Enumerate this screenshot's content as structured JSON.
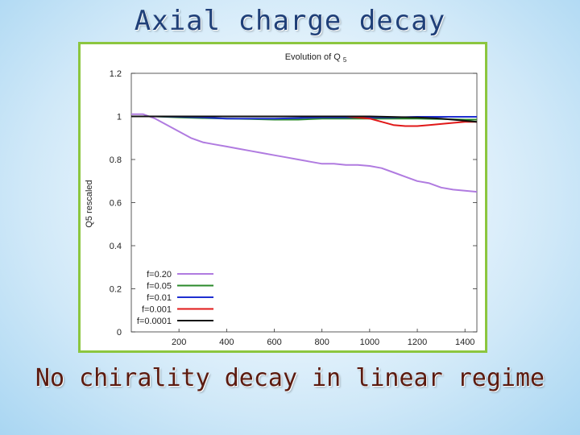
{
  "slide": {
    "title": "Axial charge decay",
    "subtitle": "No chirality decay in linear regime",
    "frame_color": "#8cc63f"
  },
  "chart_data": {
    "type": "line",
    "title": "Evolution of Q5",
    "xlabel": "",
    "ylabel": "Q5 rescaled",
    "xlim": [
      0,
      1450
    ],
    "ylim": [
      0,
      1.2
    ],
    "xticks": [
      200,
      400,
      600,
      800,
      1000,
      1200,
      1400
    ],
    "yticks": [
      0,
      0.2,
      0.4,
      0.6,
      0.8,
      1,
      1.2
    ],
    "ytick_labels": [
      "0",
      "0.2",
      "0.4",
      "0.6",
      "0.8",
      "1",
      "1.2"
    ],
    "grid": false,
    "legend_position": "bottom-left",
    "series": [
      {
        "name": "f=0.20",
        "color": "#b07be0",
        "x": [
          0,
          50,
          100,
          150,
          200,
          250,
          300,
          350,
          400,
          450,
          500,
          550,
          600,
          650,
          700,
          750,
          800,
          850,
          900,
          950,
          1000,
          1050,
          1100,
          1150,
          1200,
          1250,
          1300,
          1350,
          1400,
          1450
        ],
        "y": [
          1.01,
          1.01,
          0.99,
          0.96,
          0.93,
          0.9,
          0.88,
          0.87,
          0.86,
          0.85,
          0.84,
          0.83,
          0.82,
          0.81,
          0.8,
          0.79,
          0.78,
          0.78,
          0.775,
          0.775,
          0.77,
          0.76,
          0.74,
          0.72,
          0.7,
          0.69,
          0.67,
          0.66,
          0.655,
          0.65
        ]
      },
      {
        "name": "f=0.05",
        "color": "#2a8a2a",
        "x": [
          0,
          100,
          200,
          300,
          400,
          500,
          600,
          700,
          800,
          900,
          1000,
          1100,
          1200,
          1300,
          1400,
          1450
        ],
        "y": [
          1.0,
          1.0,
          0.995,
          0.992,
          0.99,
          0.988,
          0.985,
          0.985,
          0.99,
          0.99,
          0.99,
          0.99,
          0.99,
          0.988,
          0.985,
          0.985
        ]
      },
      {
        "name": "f=0.01",
        "color": "#1f2fd0",
        "x": [
          0,
          100,
          200,
          300,
          400,
          500,
          600,
          700,
          800,
          900,
          1000,
          1100,
          1200,
          1300,
          1400,
          1450
        ],
        "y": [
          1.0,
          1.0,
          0.998,
          0.995,
          0.99,
          0.99,
          0.99,
          0.992,
          0.995,
          0.995,
          0.995,
          0.995,
          0.998,
          0.998,
          0.998,
          0.998
        ]
      },
      {
        "name": "f=0.001",
        "color": "#e01818",
        "x": [
          0,
          100,
          200,
          300,
          400,
          500,
          600,
          700,
          800,
          900,
          1000,
          1050,
          1100,
          1150,
          1200,
          1250,
          1300,
          1350,
          1400,
          1450
        ],
        "y": [
          1.0,
          1.0,
          1.0,
          1.0,
          1.0,
          1.0,
          1.0,
          1.0,
          1.0,
          1.0,
          0.99,
          0.975,
          0.96,
          0.955,
          0.955,
          0.96,
          0.965,
          0.97,
          0.975,
          0.975
        ]
      },
      {
        "name": "f=0.0001",
        "color": "#111111",
        "x": [
          0,
          200,
          400,
          600,
          800,
          1000,
          1200,
          1300,
          1400,
          1450
        ],
        "y": [
          1.0,
          1.0,
          1.0,
          1.0,
          1.0,
          1.0,
          0.995,
          0.99,
          0.98,
          0.975
        ]
      }
    ]
  }
}
